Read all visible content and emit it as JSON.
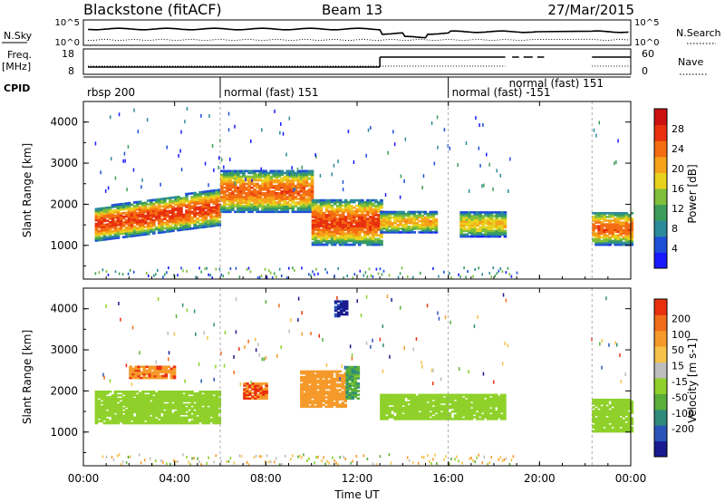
{
  "header": {
    "station": "Blackstone (fitACF)",
    "beam": "Beam 13",
    "date": "27/Mar/2015"
  },
  "left_labels": {
    "nsky": "N.Sky",
    "freq_1": "Freq.",
    "freq_2": "[MHz]",
    "cpid": "CPID"
  },
  "right_labels": {
    "nsearch": "N.Search",
    "nave": "Nave"
  },
  "nsky_panel": {
    "left_ticks": [
      "10^5",
      "10^0"
    ],
    "right_ticks": [
      "10^5",
      "10^0"
    ]
  },
  "freq_panel": {
    "left_ticks": [
      "18",
      "8"
    ],
    "right_ticks": [
      "60",
      "0"
    ]
  },
  "cpid_labels": [
    {
      "text": "rbsp 200",
      "hour": 0.0
    },
    {
      "text": "normal (fast) 151",
      "hour": 6.0
    },
    {
      "text": "normal (fast) -151",
      "hour": 16.0
    },
    {
      "text": "normal (fast) 151",
      "hour": 18.5
    }
  ],
  "cpid_boundaries": [
    6.0,
    16.0
  ],
  "x_axis": {
    "label": "Time UT",
    "ticks": [
      "00:00",
      "04:00",
      "08:00",
      "12:00",
      "16:00",
      "20:00",
      "00:00"
    ],
    "range_hours": [
      0,
      24
    ]
  },
  "y_axis": {
    "label": "Slant Range [km]",
    "ticks": [
      "1000",
      "2000",
      "3000",
      "4000"
    ],
    "range_km": [
      180,
      4500
    ]
  },
  "power_colorbar": {
    "label": "Power [dB]",
    "ticks": [
      "4",
      "8",
      "12",
      "16",
      "20",
      "24",
      "28"
    ],
    "colors": [
      "#1a1aff",
      "#1f4fd8",
      "#2b8a9a",
      "#3c9d5a",
      "#7fbf3a",
      "#e8d21e",
      "#f6a21a",
      "#f46d12",
      "#e8300f",
      "#cc1010"
    ]
  },
  "velocity_colorbar": {
    "label": "Velocity [m s-1]",
    "ticks": [
      "200",
      "100",
      "50",
      "15",
      "-15",
      "-50",
      "-100",
      "-200"
    ],
    "colors": [
      "#1a1a8f",
      "#2a55b8",
      "#2f8a7a",
      "#5aaf3a",
      "#8fd12a",
      "#bdbdbd",
      "#f5c24a",
      "#f59a2a",
      "#f06c1a",
      "#e8300f"
    ]
  },
  "chart_data": {
    "type": "heatmap",
    "panels": [
      "power",
      "velocity"
    ],
    "power_bands": [
      {
        "t0": 0.5,
        "t1": 6.0,
        "r0": 1100,
        "r1": 1900,
        "level": 26,
        "slope_km_per_h": 140
      },
      {
        "t0": 6.0,
        "t1": 10.0,
        "r0": 1800,
        "r1": 2800,
        "level": 24
      },
      {
        "t0": 10.0,
        "t1": 13.0,
        "r0": 1000,
        "r1": 2100,
        "level": 26
      },
      {
        "t0": 13.0,
        "t1": 15.5,
        "r0": 1300,
        "r1": 1800,
        "level": 20
      },
      {
        "t0": 16.5,
        "t1": 18.5,
        "r0": 1200,
        "r1": 1800,
        "level": 18
      },
      {
        "t0": 22.3,
        "t1": 24.0,
        "r0": 1000,
        "r1": 1800,
        "level": 24
      }
    ],
    "velocity_bands": [
      {
        "t0": 0.5,
        "t1": 6.0,
        "r0": 1200,
        "r1": 2000,
        "value": 0
      },
      {
        "t0": 2.0,
        "t1": 4.0,
        "r0": 2300,
        "r1": 2600,
        "value": -180
      },
      {
        "t0": 7.0,
        "t1": 8.0,
        "r0": 1800,
        "r1": 2200,
        "value": -200
      },
      {
        "t0": 9.5,
        "t1": 11.5,
        "r0": 1600,
        "r1": 2500,
        "value": -150
      },
      {
        "t0": 11.5,
        "t1": 12.0,
        "r0": 1800,
        "r1": 2600,
        "value": 40
      },
      {
        "t0": 11.0,
        "t1": 11.5,
        "r0": 3800,
        "r1": 4200,
        "value": 220
      },
      {
        "t0": 13.0,
        "t1": 18.5,
        "r0": 1300,
        "r1": 1900,
        "value": 0
      },
      {
        "t0": 22.3,
        "t1": 24.0,
        "r0": 1000,
        "r1": 1800,
        "value": 0
      }
    ]
  }
}
